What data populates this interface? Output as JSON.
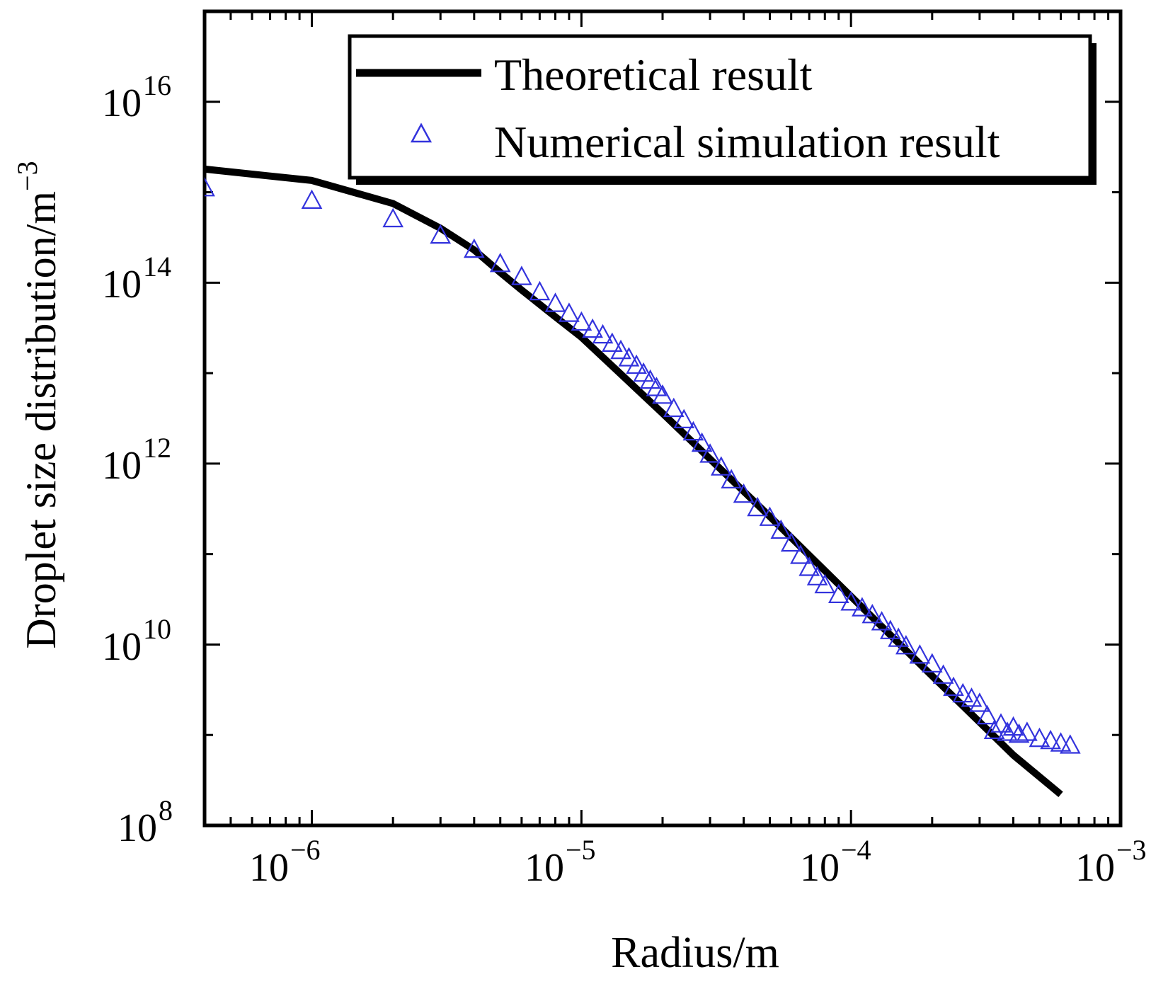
{
  "chart_data": {
    "type": "scatter",
    "title": "",
    "xlabel": "Radius/m",
    "ylabel_base": "Droplet size distribution/m",
    "ylabel_exp": "−3",
    "xscale": "log",
    "yscale": "log",
    "xlim": [
      4e-07,
      0.001
    ],
    "ylim": [
      100000000.0,
      1e+17
    ],
    "x_ticks": [
      {
        "base": "10",
        "exp": "−6",
        "value": 1e-06
      },
      {
        "base": "10",
        "exp": "−5",
        "value": 1e-05
      },
      {
        "base": "10",
        "exp": "−4",
        "value": 0.0001
      },
      {
        "base": "10",
        "exp": "−3",
        "value": 0.001
      }
    ],
    "y_ticks": [
      {
        "base": "10",
        "exp": "8",
        "value": 100000000.0
      },
      {
        "base": "10",
        "exp": "10",
        "value": 10000000000.0
      },
      {
        "base": "10",
        "exp": "12",
        "value": 1000000000000.0
      },
      {
        "base": "10",
        "exp": "14",
        "value": 100000000000000.0
      },
      {
        "base": "10",
        "exp": "16",
        "value": 1e+16
      }
    ],
    "grid": false,
    "legend_position": "top-right",
    "series": [
      {
        "name": "Theoretical result",
        "kind": "line",
        "color": "#000000",
        "x": [
          4e-07,
          1e-06,
          2e-06,
          3e-06,
          4e-06,
          5e-06,
          6e-06,
          8e-06,
          1e-05,
          2e-05,
          5e-05,
          0.0001,
          0.0002,
          0.0004,
          0.0006
        ],
        "y": [
          1800000000000000.0,
          1350000000000000.0,
          750000000000000.0,
          400000000000000.0,
          230000000000000.0,
          130000000000000.0,
          83000000000000.0,
          42000000000000.0,
          25000000000000.0,
          3600000000000.0,
          260000000000.0,
          34000000000.0,
          4500000000.0,
          600000000.0,
          220000000.0
        ]
      },
      {
        "name": "Numerical simulation result",
        "kind": "markers",
        "marker": "open-triangle",
        "color": "#3333dd",
        "x": [
          4e-07,
          1e-06,
          2e-06,
          3e-06,
          4e-06,
          5e-06,
          6e-06,
          7e-06,
          8e-06,
          9e-06,
          1e-05,
          1.1e-05,
          1.2e-05,
          1.3e-05,
          1.4e-05,
          1.5e-05,
          1.6e-05,
          1.7e-05,
          1.8e-05,
          1.9e-05,
          2e-05,
          2.2e-05,
          2.4e-05,
          2.6e-05,
          2.8e-05,
          3e-05,
          3.3e-05,
          3.6e-05,
          4e-05,
          4.5e-05,
          5e-05,
          5.5e-05,
          6e-05,
          6.5e-05,
          7e-05,
          7.5e-05,
          8e-05,
          9e-05,
          0.0001,
          0.00011,
          0.00012,
          0.00013,
          0.00014,
          0.00015,
          0.00016,
          0.00018,
          0.0002,
          0.00022,
          0.00024,
          0.00026,
          0.00028,
          0.0003,
          0.00032,
          0.00034,
          0.00036,
          0.00038,
          0.0004,
          0.00042,
          0.00045,
          0.0005,
          0.00055,
          0.0006,
          0.00065
        ],
        "y": [
          1100000000000000.0,
          800000000000000.0,
          500000000000000.0,
          330000000000000.0,
          230000000000000.0,
          160000000000000.0,
          115000000000000.0,
          78000000000000.0,
          58000000000000.0,
          45000000000000.0,
          36000000000000.0,
          30000000000000.0,
          26000000000000.0,
          21000000000000.0,
          17500000000000.0,
          14500000000000.0,
          12000000000000.0,
          9800000000000.0,
          8200000000000.0,
          6800000000000.0,
          5600000000000.0,
          4000000000000.0,
          3000000000000.0,
          2200000000000.0,
          1650000000000.0,
          1250000000000.0,
          900000000000.0,
          650000000000.0,
          450000000000.0,
          320000000000.0,
          250000000000.0,
          180000000000.0,
          130000000000.0,
          95000000000.0,
          70000000000.0,
          55000000000.0,
          45000000000.0,
          35000000000.0,
          29000000000.0,
          25000000000.0,
          21000000000.0,
          17500000000.0,
          14000000000.0,
          11500000000.0,
          9500000000.0,
          7500000000.0,
          6000000000.0,
          4500000000.0,
          3300000000.0,
          2800000000.0,
          2500000000.0,
          2200000000.0,
          1600000000.0,
          1100000000.0,
          1300000000.0,
          1050000000.0,
          1200000000.0,
          1000000000.0,
          1050000000.0,
          900000000.0,
          850000000.0,
          800000000.0,
          760000000.0
        ]
      }
    ]
  }
}
